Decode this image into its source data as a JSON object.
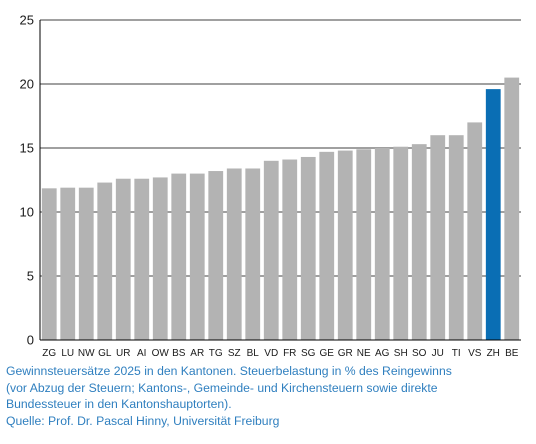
{
  "chart_data": {
    "type": "bar",
    "title": "",
    "xlabel": "",
    "ylabel": "",
    "ylim": [
      0,
      25
    ],
    "yticks": [
      0,
      5,
      10,
      15,
      20,
      25
    ],
    "grid": "horizontal",
    "categories": [
      "ZG",
      "LU",
      "NW",
      "GL",
      "UR",
      "AI",
      "OW",
      "BS",
      "AR",
      "TG",
      "SZ",
      "BL",
      "VD",
      "FR",
      "SG",
      "GE",
      "GR",
      "NE",
      "AG",
      "SH",
      "SO",
      "JU",
      "TI",
      "VS",
      "ZH",
      "BE"
    ],
    "values": [
      11.85,
      11.9,
      11.9,
      12.3,
      12.6,
      12.6,
      12.7,
      13.0,
      13.0,
      13.2,
      13.4,
      13.4,
      14.0,
      14.1,
      14.3,
      14.7,
      14.8,
      14.9,
      15.0,
      15.1,
      15.3,
      16.0,
      16.0,
      17.0,
      19.6,
      20.5
    ],
    "highlight_category": "ZH",
    "colors": {
      "bar": "#b3b3b3",
      "highlight": "#0a6eb4",
      "axis": "#000000",
      "grid": "#000000",
      "text": "#1a1a1a"
    }
  },
  "caption": {
    "lines": [
      "Gewinnsteuersätze 2025 in den Kantonen. Steuerbelastung in % des Reingewinns",
      "(vor Abzug der Steuern; Kantons-, Gemeinde- und Kirchensteuern sowie direkte",
      "Bundessteuer in den Kantonshauptorten).",
      "Quelle: Prof. Dr. Pascal Hinny, Universität Freiburg"
    ]
  }
}
